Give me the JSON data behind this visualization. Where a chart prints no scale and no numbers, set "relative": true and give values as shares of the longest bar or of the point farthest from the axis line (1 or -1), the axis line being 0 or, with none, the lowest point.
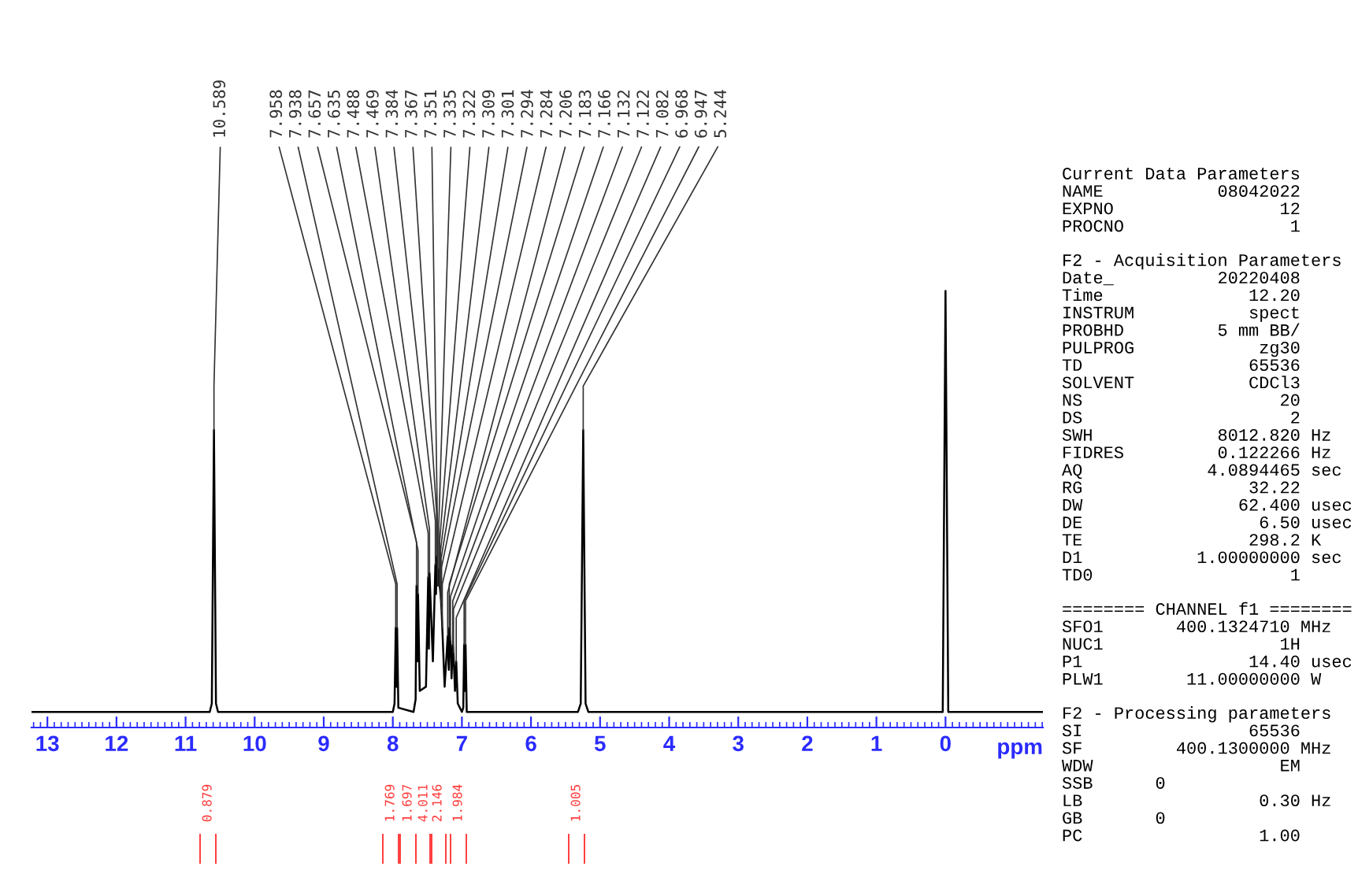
{
  "chart_data": {
    "type": "line",
    "relative": true,
    "xlabel": "ppm",
    "xlim": [
      13.23,
      -1.41
    ],
    "xticks": [
      13,
      12,
      11,
      10,
      9,
      8,
      7,
      6,
      5,
      4,
      3,
      2,
      1,
      0
    ],
    "grid": false,
    "legend": false,
    "marker": "none",
    "line_style": "solid",
    "series": [
      {
        "color": "#000000",
        "x": [
          13.23,
          10.65,
          10.62,
          10.589,
          10.56,
          10.53,
          8.0,
          7.975,
          7.958,
          7.948,
          7.938,
          7.92,
          7.7,
          7.67,
          7.657,
          7.646,
          7.635,
          7.61,
          7.52,
          7.488,
          7.478,
          7.469,
          7.42,
          7.384,
          7.375,
          7.367,
          7.351,
          7.335,
          7.322,
          7.309,
          7.301,
          7.294,
          7.284,
          7.25,
          7.206,
          7.19,
          7.183,
          7.166,
          7.15,
          7.132,
          7.122,
          7.1,
          7.082,
          7.06,
          7.0,
          6.98,
          6.968,
          6.957,
          6.947,
          6.93,
          5.32,
          5.28,
          5.244,
          5.21,
          5.17,
          0.04,
          0.0,
          -0.04,
          -1.41
        ],
        "values": [
          0,
          0,
          0.02,
          0.67,
          0.02,
          0,
          0,
          0.02,
          0.2,
          0.06,
          0.2,
          0.01,
          0,
          0.03,
          0.3,
          0.12,
          0.28,
          0.05,
          0.06,
          0.32,
          0.15,
          0.33,
          0.12,
          0.35,
          0.28,
          0.37,
          0.3,
          0.34,
          0.3,
          0.28,
          0.26,
          0.24,
          0.2,
          0.06,
          0.18,
          0.1,
          0.2,
          0.17,
          0.08,
          0.16,
          0.14,
          0.05,
          0.12,
          0.02,
          0,
          0.01,
          0.16,
          0.05,
          0.16,
          0,
          0,
          0.02,
          0.67,
          0.02,
          0,
          0,
          1,
          0,
          0
        ]
      }
    ],
    "annotations": [
      {
        "text": "10.589",
        "x": 10.589,
        "y": 0.67
      },
      {
        "text": "7.958",
        "x": 7.958,
        "y": 0.2
      },
      {
        "text": "7.938",
        "x": 7.938,
        "y": 0.2
      },
      {
        "text": "7.657",
        "x": 7.657,
        "y": 0.3
      },
      {
        "text": "7.635",
        "x": 7.635,
        "y": 0.28
      },
      {
        "text": "7.488",
        "x": 7.488,
        "y": 0.32
      },
      {
        "text": "7.469",
        "x": 7.469,
        "y": 0.33
      },
      {
        "text": "7.384",
        "x": 7.384,
        "y": 0.35
      },
      {
        "text": "7.367",
        "x": 7.367,
        "y": 0.37
      },
      {
        "text": "7.351",
        "x": 7.351,
        "y": 0.3
      },
      {
        "text": "7.335",
        "x": 7.335,
        "y": 0.34
      },
      {
        "text": "7.322",
        "x": 7.322,
        "y": 0.3
      },
      {
        "text": "7.309",
        "x": 7.309,
        "y": 0.28
      },
      {
        "text": "7.301",
        "x": 7.301,
        "y": 0.26
      },
      {
        "text": "7.294",
        "x": 7.294,
        "y": 0.24
      },
      {
        "text": "7.284",
        "x": 7.284,
        "y": 0.2
      },
      {
        "text": "7.206",
        "x": 7.206,
        "y": 0.18
      },
      {
        "text": "7.183",
        "x": 7.183,
        "y": 0.2
      },
      {
        "text": "7.166",
        "x": 7.166,
        "y": 0.17
      },
      {
        "text": "7.132",
        "x": 7.132,
        "y": 0.16
      },
      {
        "text": "7.122",
        "x": 7.122,
        "y": 0.14
      },
      {
        "text": "7.082",
        "x": 7.082,
        "y": 0.12
      },
      {
        "text": "6.968",
        "x": 6.968,
        "y": 0.16
      },
      {
        "text": "6.947",
        "x": 6.947,
        "y": 0.16
      },
      {
        "text": "5.244",
        "x": 5.244,
        "y": 0.67
      },
      "0.879",
      "1.769",
      "1.697",
      "4.011",
      "2.146",
      "1.984",
      "1.005",
      "Current Data Parameters",
      "NAME           08042022",
      "EXPNO                12",
      "PROCNO                1",
      "F2 - Acquisition Parameters",
      "Date_          20220408",
      "Time              12.20",
      "INSTRUM           spect",
      "PROBHD         5 mm BB/",
      "PULPROG            zg30",
      "TD                65536",
      "SOLVENT           CDCl3",
      "NS                   20",
      "DS                    2",
      "SWH            8012.820 Hz",
      "FIDRES         0.122266 Hz",
      "AQ            4.0894465 sec",
      "RG                32.22",
      "DW               62.400 usec",
      "DE                 6.50 usec",
      "TE                298.2 K",
      "D1           1.00000000 sec",
      "TD0                   1",
      "======== CHANNEL f1 ========",
      "SFO1       400.1324710 MHz",
      "NUC1                 1H",
      "P1                14.40 usec",
      "PLW1        11.00000000 W",
      "F2 - Processing parameters",
      "SI                65536",
      "SF         400.1300000 MHz",
      "WDW                  EM",
      "SSB      0",
      "LB                 0.30 Hz",
      "GB       0",
      "PC                 1.00"
    ]
  }
}
